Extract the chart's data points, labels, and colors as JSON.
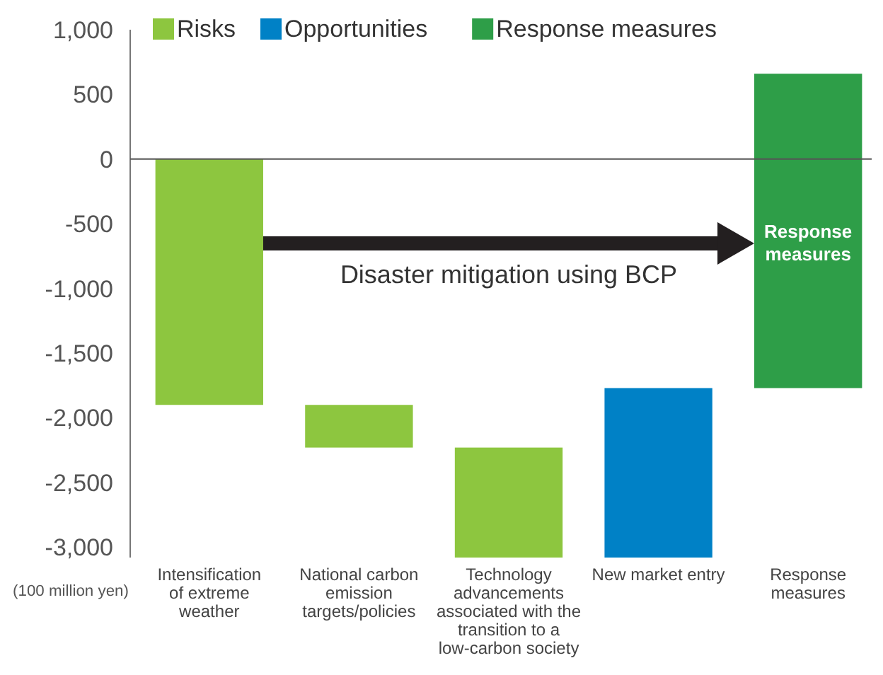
{
  "chart_data": {
    "type": "bar",
    "ylabel": "(100 million yen)",
    "categories": [
      "Intensification of extreme weather",
      "National carbon emission targets/policies",
      "Technology advancements associated with the transition to a low-carbon society",
      "New market entry",
      "Response measures"
    ],
    "series": [
      {
        "name": "Risks",
        "color": "#8dc63f",
        "base": [
          0,
          -1900,
          -2230,
          null,
          null
        ],
        "values": [
          -1900,
          -330,
          -850,
          null,
          null
        ]
      },
      {
        "name": "Opportunities",
        "color": "#0081c6",
        "base": [
          null,
          null,
          null,
          -3080,
          null
        ],
        "values": [
          null,
          null,
          null,
          1310,
          null
        ]
      },
      {
        "name": "Response measures",
        "color": "#2e9e48",
        "base": [
          null,
          null,
          null,
          null,
          -1770
        ],
        "values": [
          null,
          null,
          null,
          null,
          2430
        ]
      }
    ],
    "ylim": [
      -3080,
      1000
    ],
    "yticks": [
      {
        "value": 1000,
        "label": "1,000"
      },
      500,
      0,
      -500,
      {
        "value": -1000,
        "label": "-1,000"
      },
      {
        "value": -1500,
        "label": "-1,500"
      },
      {
        "value": -2000,
        "label": "-2,000"
      },
      {
        "value": -2500,
        "label": "-2,500"
      },
      {
        "value": -3000,
        "label": "-3,000"
      }
    ],
    "legend": "top left",
    "annotations": [
      "Disaster mitigation using BCP",
      "Response measures"
    ]
  }
}
